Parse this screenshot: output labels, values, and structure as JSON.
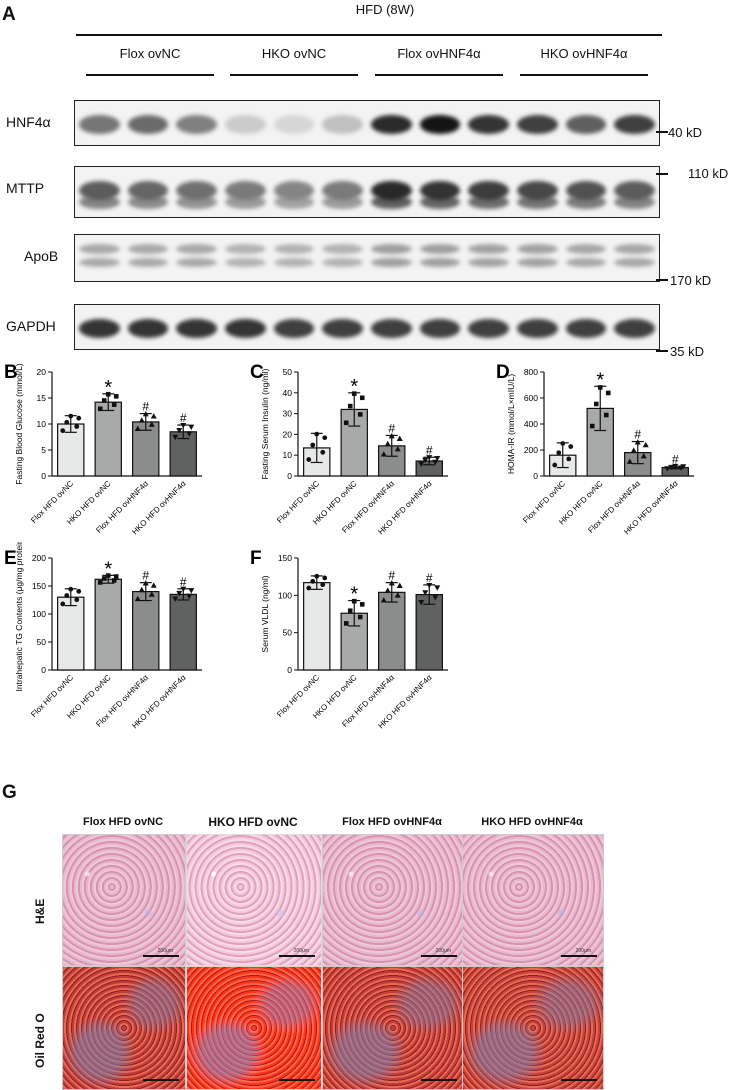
{
  "panelA": {
    "letter": "A",
    "top_header": "HFD (8W)",
    "groups": [
      "Flox ovNC",
      "HKO ovNC",
      "Flox ovHNF4α",
      "HKO ovHNF4α"
    ],
    "blots": [
      {
        "name": "HNF4α",
        "kd": "40 kD"
      },
      {
        "name": "MTTP",
        "kd": "110 kD"
      },
      {
        "name": "ApoB",
        "kd": "170 kD"
      },
      {
        "name": "GAPDH",
        "kd": "35 kD"
      }
    ],
    "band_intensity": [
      [
        0.55,
        0.6,
        0.5,
        0.15,
        0.1,
        0.2,
        0.9,
        1.0,
        0.85,
        0.8,
        0.65,
        0.8
      ],
      [
        0.7,
        0.65,
        0.6,
        0.55,
        0.5,
        0.55,
        0.95,
        0.9,
        0.85,
        0.8,
        0.75,
        0.7
      ],
      [
        0.35,
        0.35,
        0.35,
        0.3,
        0.3,
        0.3,
        0.4,
        0.4,
        0.38,
        0.38,
        0.36,
        0.36
      ],
      [
        0.85,
        0.85,
        0.85,
        0.85,
        0.8,
        0.8,
        0.8,
        0.8,
        0.8,
        0.8,
        0.8,
        0.8
      ]
    ]
  },
  "bar_colors": [
    "#e6e9e8",
    "#a7aaa9",
    "#8a8d8c",
    "#5f6261"
  ],
  "chart_data": [
    {
      "type": "bar",
      "letter": "B",
      "ylabel": "Fasting Blood Glucose (mmol/L)",
      "ylim": [
        0,
        20
      ],
      "yticks": [
        0,
        5,
        10,
        15,
        20
      ],
      "categories": [
        "Flox HFD ovNC",
        "HKO HFD ovNC",
        "Flox HFD ovHNF4α",
        "HKO HFD ovHNF4α"
      ],
      "values": [
        10,
        14.2,
        10.4,
        8.5
      ],
      "errors": [
        1.6,
        1.6,
        1.6,
        1.3
      ],
      "annotations": [
        "",
        "*",
        "#",
        "#"
      ]
    },
    {
      "type": "bar",
      "letter": "C",
      "ylabel": "Fasting Serum Insulin (ng/ml)",
      "ylim": [
        0,
        50
      ],
      "yticks": [
        0,
        10,
        20,
        30,
        40,
        50
      ],
      "categories": [
        "Flox HFD ovNC",
        "HKO HFD ovNC",
        "Flox HFD ovHNF4α",
        "HKO HFD ovHNF4α"
      ],
      "values": [
        13.5,
        32,
        14.5,
        7.2
      ],
      "errors": [
        7,
        8,
        5,
        1.8
      ],
      "annotations": [
        "",
        "*",
        "#",
        "#"
      ]
    },
    {
      "type": "bar",
      "letter": "D",
      "ylabel": "HOMA-IR (mmol/L×mIU/L)",
      "ylim": [
        0,
        800
      ],
      "yticks": [
        0,
        200,
        400,
        600,
        800
      ],
      "categories": [
        "Flox HFD ovNC",
        "HKO HFD ovNC",
        "Flox HFD ovHNF4α",
        "HKO HFD ovHNF4α"
      ],
      "values": [
        160,
        520,
        180,
        65
      ],
      "errors": [
        95,
        170,
        85,
        10
      ],
      "annotations": [
        "",
        "*",
        "#",
        "#"
      ]
    },
    {
      "type": "bar",
      "letter": "E",
      "ylabel": "Intrahepatic TG Contents (μg/mg protein)",
      "ylim": [
        0,
        200
      ],
      "yticks": [
        0,
        50,
        100,
        150,
        200
      ],
      "categories": [
        "Flox HFD ovNC",
        "HKO HFD ovNC",
        "Flox HFD ovHNF4α",
        "HKO HFD ovHNF4α"
      ],
      "values": [
        130,
        162,
        140,
        135
      ],
      "errors": [
        15,
        7,
        16,
        10
      ],
      "annotations": [
        "",
        "*",
        "#",
        "#"
      ]
    },
    {
      "type": "bar",
      "letter": "F",
      "ylabel": "Serum VLDL (ng/ml)",
      "ylim": [
        0,
        150
      ],
      "yticks": [
        0,
        50,
        100,
        150
      ],
      "categories": [
        "Flox HFD ovNC",
        "HKO HFD ovNC",
        "Flox HFD ovHNF4α",
        "HKO HFD ovHNF4α"
      ],
      "values": [
        117,
        76,
        104,
        101
      ],
      "errors": [
        9,
        17,
        13,
        13
      ],
      "annotations": [
        "",
        "*",
        "#",
        "#"
      ]
    }
  ],
  "panelG": {
    "letter": "G",
    "columns": [
      "Flox HFD ovNC",
      "HKO HFD ovNC",
      "Flox HFD ovHNF4α",
      "HKO HFD ovHNF4α"
    ],
    "rows": [
      "H&E",
      "Oil Red O"
    ],
    "scale_label": "200μm"
  }
}
